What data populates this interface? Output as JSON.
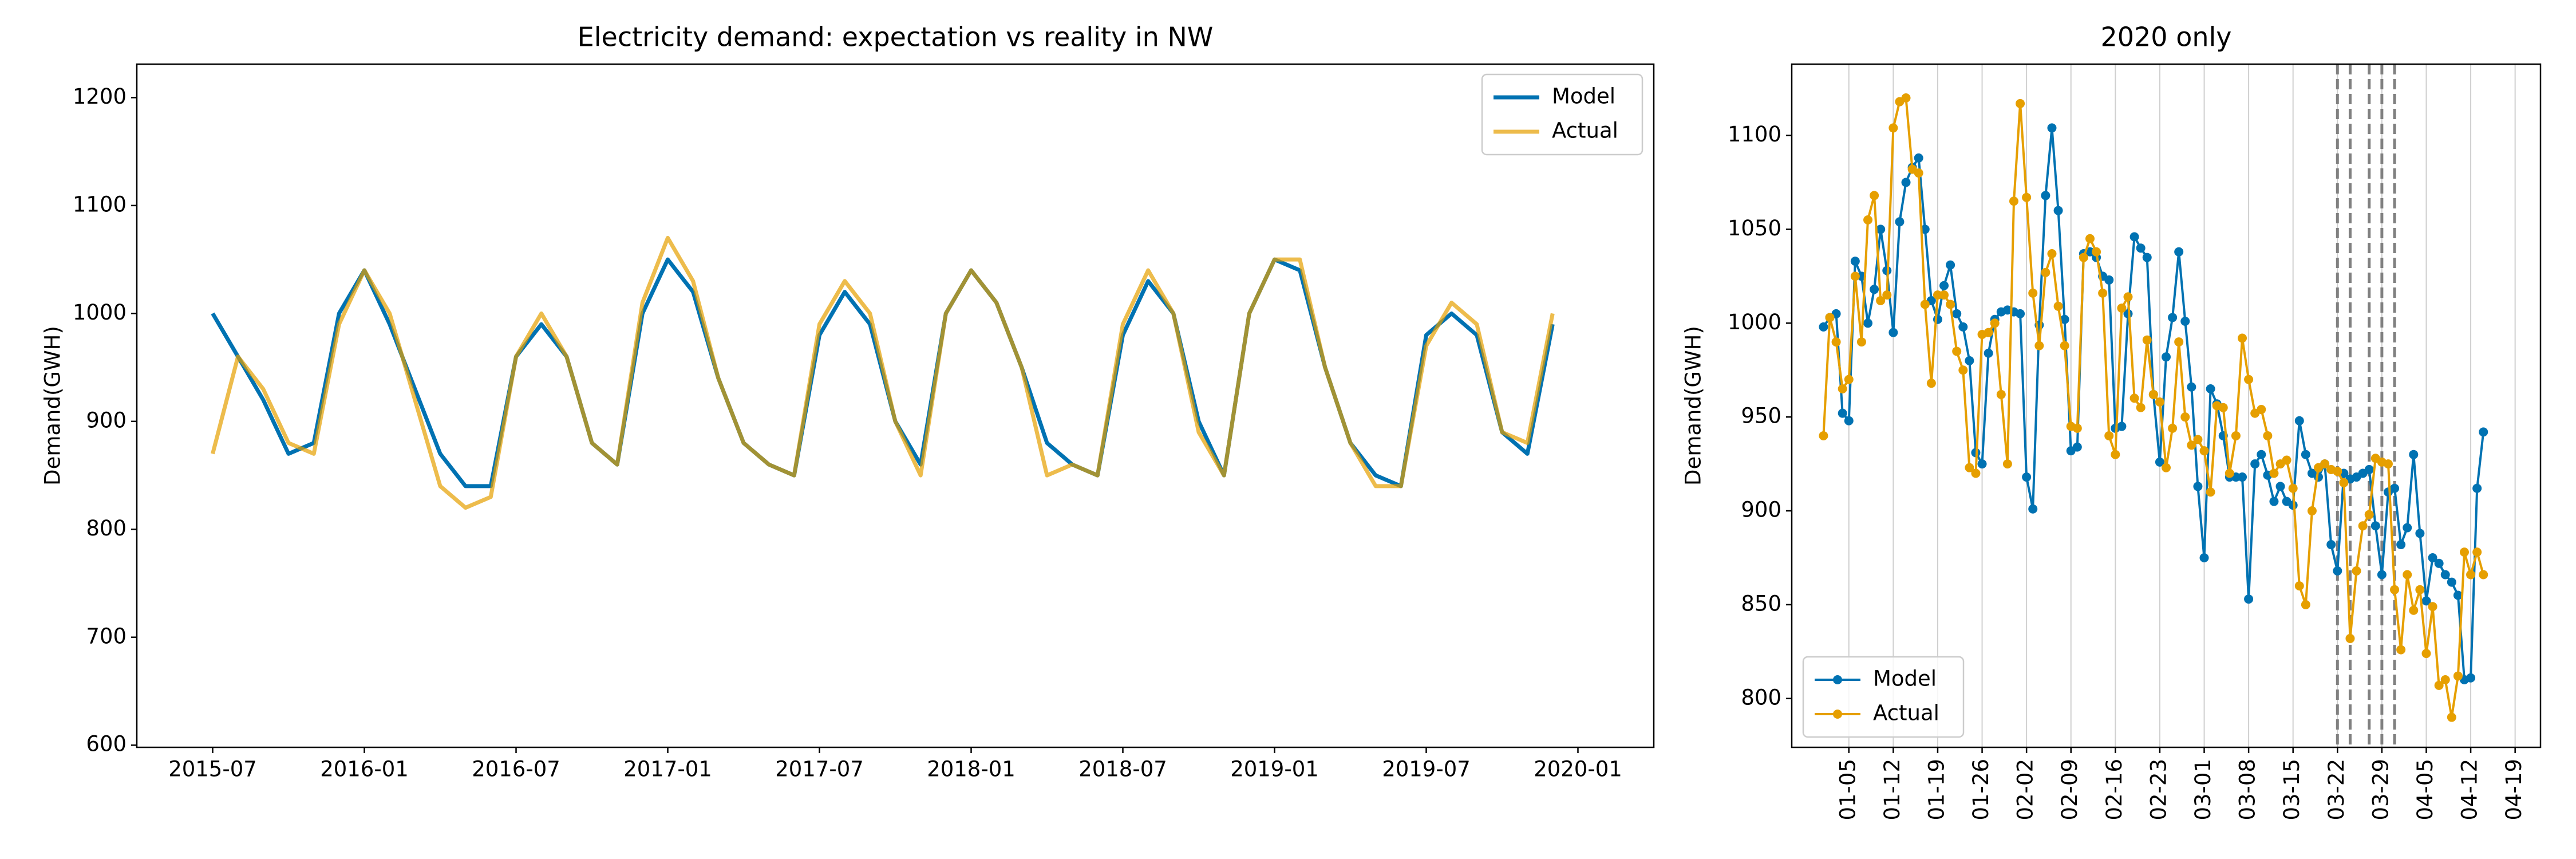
{
  "chart_data": [
    {
      "type": "line",
      "title": "Electricity demand: expectation vs reality in NW",
      "y_label": "Demand(GWH)",
      "x": [
        "2015-07",
        "2015-08",
        "2015-09",
        "2015-10",
        "2015-11",
        "2015-12",
        "2016-01",
        "2016-02",
        "2016-03",
        "2016-04",
        "2016-05",
        "2016-06",
        "2016-07",
        "2016-08",
        "2016-09",
        "2016-10",
        "2016-11",
        "2016-12",
        "2017-01",
        "2017-02",
        "2017-03",
        "2017-04",
        "2017-05",
        "2017-06",
        "2017-07",
        "2017-08",
        "2017-09",
        "2017-10",
        "2017-11",
        "2017-12",
        "2018-01",
        "2018-02",
        "2018-03",
        "2018-04",
        "2018-05",
        "2018-06",
        "2018-07",
        "2018-08",
        "2018-09",
        "2018-10",
        "2018-11",
        "2018-12",
        "2019-01",
        "2019-02",
        "2019-03",
        "2019-04",
        "2019-05",
        "2019-06",
        "2019-07",
        "2019-08",
        "2019-09",
        "2019-10",
        "2019-11",
        "2019-12"
      ],
      "series": [
        {
          "name": "Model",
          "color": "#0072b2",
          "values": [
            1000,
            960,
            920,
            870,
            880,
            1000,
            1040,
            990,
            930,
            870,
            840,
            840,
            960,
            990,
            960,
            880,
            860,
            1000,
            1050,
            1020,
            940,
            880,
            860,
            850,
            980,
            1020,
            990,
            900,
            860,
            1000,
            1040,
            1010,
            950,
            880,
            860,
            850,
            980,
            1030,
            1000,
            900,
            850,
            1000,
            1050,
            1040,
            950,
            880,
            850,
            840,
            980,
            1000,
            980,
            890,
            870,
            990
          ]
        },
        {
          "name": "Actual",
          "color": "#e69f00",
          "values": [
            870,
            960,
            930,
            880,
            870,
            990,
            1040,
            1000,
            920,
            840,
            820,
            830,
            960,
            1000,
            960,
            880,
            860,
            1010,
            1070,
            1030,
            940,
            880,
            860,
            850,
            990,
            1030,
            1000,
            900,
            850,
            1000,
            1040,
            1010,
            950,
            850,
            860,
            850,
            990,
            1040,
            1000,
            890,
            850,
            1000,
            1050,
            1050,
            950,
            880,
            840,
            840,
            970,
            1010,
            990,
            890,
            880,
            1000
          ]
        }
      ],
      "xlim": [
        "2015-04",
        "2020-04"
      ],
      "xticks": [
        "2015-07",
        "2016-01",
        "2016-07",
        "2017-01",
        "2017-07",
        "2018-01",
        "2018-07",
        "2019-01",
        "2019-07",
        "2020-01"
      ],
      "ylim": [
        598,
        1231
      ],
      "yticks": [
        600,
        700,
        800,
        900,
        1000,
        1100,
        1200
      ],
      "grid": false,
      "legend": "upper right",
      "markers": false
    },
    {
      "type": "line",
      "title": "2020 only",
      "y_label": "Demand(GWH)",
      "x": [
        "01-01",
        "01-02",
        "01-03",
        "01-04",
        "01-05",
        "01-06",
        "01-07",
        "01-08",
        "01-09",
        "01-10",
        "01-11",
        "01-12",
        "01-13",
        "01-14",
        "01-15",
        "01-16",
        "01-17",
        "01-18",
        "01-19",
        "01-20",
        "01-21",
        "01-22",
        "01-23",
        "01-24",
        "01-25",
        "01-26",
        "01-27",
        "01-28",
        "01-29",
        "01-30",
        "01-31",
        "02-01",
        "02-02",
        "02-03",
        "02-04",
        "02-05",
        "02-06",
        "02-07",
        "02-08",
        "02-09",
        "02-10",
        "02-11",
        "02-12",
        "02-13",
        "02-14",
        "02-15",
        "02-16",
        "02-17",
        "02-18",
        "02-19",
        "02-20",
        "02-21",
        "02-22",
        "02-23",
        "02-24",
        "02-25",
        "02-26",
        "02-27",
        "02-28",
        "02-29",
        "03-01",
        "03-02",
        "03-03",
        "03-04",
        "03-05",
        "03-06",
        "03-07",
        "03-08",
        "03-09",
        "03-10",
        "03-11",
        "03-12",
        "03-13",
        "03-14",
        "03-15",
        "03-16",
        "03-17",
        "03-18",
        "03-19",
        "03-20",
        "03-21",
        "03-22",
        "03-23",
        "03-24",
        "03-25",
        "03-26",
        "03-27",
        "03-28",
        "03-29",
        "03-30",
        "03-31",
        "04-01",
        "04-02",
        "04-03",
        "04-04",
        "04-05",
        "04-06",
        "04-07",
        "04-08",
        "04-09",
        "04-10",
        "04-11",
        "04-12",
        "04-13",
        "04-14"
      ],
      "series": [
        {
          "name": "Model",
          "color": "#0072b2",
          "values": [
            998,
            1003,
            1005,
            952,
            948,
            1033,
            1025,
            1000,
            1018,
            1050,
            1028,
            995,
            1054,
            1075,
            1083,
            1088,
            1050,
            1012,
            1002,
            1020,
            1031,
            1005,
            998,
            980,
            931,
            925,
            984,
            1002,
            1006,
            1007,
            1006,
            1005,
            918,
            901,
            999,
            1068,
            1104,
            1060,
            1002,
            932,
            934,
            1037,
            1038,
            1035,
            1025,
            1023,
            944,
            945,
            1005,
            1046,
            1040,
            1035,
            962,
            926,
            982,
            1003,
            1038,
            1001,
            966,
            913,
            875,
            965,
            957,
            940,
            918,
            918,
            918,
            853,
            925,
            930,
            919,
            905,
            913,
            905,
            903,
            948,
            930,
            920,
            918,
            925,
            882,
            868,
            920,
            917,
            918,
            920,
            922,
            892,
            866,
            910,
            912,
            882,
            891,
            930,
            888,
            852,
            875,
            872,
            866,
            862,
            855,
            810,
            811,
            912,
            942
          ]
        },
        {
          "name": "Actual",
          "color": "#e69f00",
          "values": [
            940,
            1003,
            990,
            965,
            970,
            1025,
            990,
            1055,
            1068,
            1012,
            1015,
            1104,
            1118,
            1120,
            1082,
            1080,
            1010,
            968,
            1015,
            1015,
            1010,
            985,
            975,
            923,
            920,
            994,
            995,
            1000,
            962,
            925,
            1065,
            1117,
            1067,
            1016,
            988,
            1027,
            1037,
            1009,
            988,
            945,
            944,
            1035,
            1045,
            1038,
            1016,
            940,
            930,
            1008,
            1014,
            960,
            955,
            991,
            962,
            958,
            923,
            944,
            990,
            950,
            935,
            938,
            932,
            910,
            956,
            955,
            920,
            940,
            992,
            970,
            952,
            954,
            940,
            920,
            925,
            927,
            912,
            860,
            850,
            900,
            923,
            925,
            922,
            921,
            915,
            832,
            868,
            892,
            898,
            928,
            926,
            925,
            858,
            826,
            866,
            847,
            858,
            824,
            849,
            807,
            810,
            790,
            812,
            878,
            866,
            878,
            866
          ]
        }
      ],
      "xlim": [
        "12-27",
        "04-23"
      ],
      "xticks": [
        "01-05",
        "01-12",
        "01-19",
        "01-26",
        "02-02",
        "02-09",
        "02-16",
        "02-23",
        "03-01",
        "03-08",
        "03-15",
        "03-22",
        "03-29",
        "04-05",
        "04-12",
        "04-19"
      ],
      "ylim": [
        774,
        1138
      ],
      "yticks": [
        800,
        850,
        900,
        950,
        1000,
        1050,
        1100
      ],
      "grid": "x",
      "legend": "lower left",
      "markers": true,
      "vlines": [
        "03-22",
        "03-24",
        "03-27",
        "03-29",
        "03-31"
      ]
    }
  ]
}
